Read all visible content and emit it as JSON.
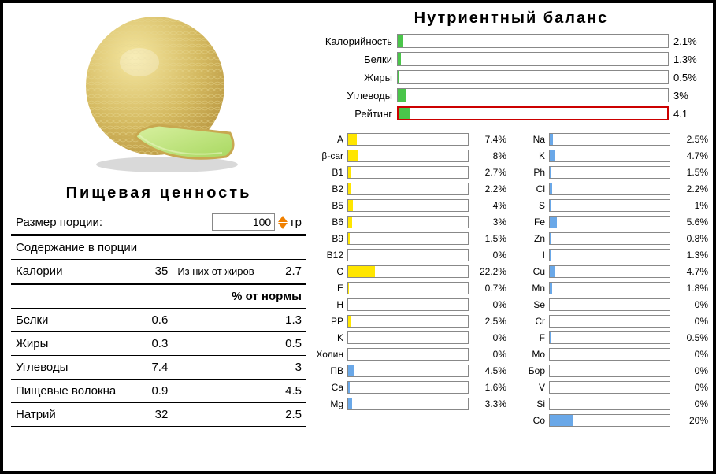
{
  "nutritionTitle": "Пищевая ценность",
  "portion": {
    "label": "Размер порции:",
    "value": "100",
    "unit": "гр"
  },
  "portionContentLabel": "Содержание в порции",
  "caloriesRow": {
    "label": "Калории",
    "value": "35",
    "fromFatLabel": "Из них от жиров",
    "fromFatValue": "2.7"
  },
  "normHeader": "% от нормы",
  "nutriRows": [
    {
      "label": "Белки",
      "value": "0.6",
      "pct": "1.3"
    },
    {
      "label": "Жиры",
      "value": "0.3",
      "pct": "0.5"
    },
    {
      "label": "Углеводы",
      "value": "7.4",
      "pct": "3"
    },
    {
      "label": "Пищевые волокна",
      "value": "0.9",
      "pct": "4.5"
    },
    {
      "label": "Натрий",
      "value": "32",
      "pct": "2.5"
    }
  ],
  "balanceTitle": "Нутриентный баланс",
  "topBars": [
    {
      "label": "Калорийность",
      "value": "2.1%",
      "pct": 2.1,
      "color": "#4ac54a"
    },
    {
      "label": "Белки",
      "value": "1.3%",
      "pct": 1.3,
      "color": "#4ac54a"
    },
    {
      "label": "Жиры",
      "value": "0.5%",
      "pct": 0.5,
      "color": "#4ac54a"
    },
    {
      "label": "Углеводы",
      "value": "3%",
      "pct": 3,
      "color": "#4ac54a"
    },
    {
      "label": "Рейтинг",
      "value": "4.1",
      "pct": 4.1,
      "color": "#4ac54a",
      "rating": true
    }
  ],
  "col1": [
    {
      "label": "A",
      "value": "7.4%",
      "pct": 7.4,
      "color": "#ffe600"
    },
    {
      "label": "β-car",
      "value": "8%",
      "pct": 8,
      "color": "#ffe600"
    },
    {
      "label": "B1",
      "value": "2.7%",
      "pct": 2.7,
      "color": "#ffe600"
    },
    {
      "label": "B2",
      "value": "2.2%",
      "pct": 2.2,
      "color": "#ffe600"
    },
    {
      "label": "B5",
      "value": "4%",
      "pct": 4,
      "color": "#ffe600"
    },
    {
      "label": "B6",
      "value": "3%",
      "pct": 3,
      "color": "#ffe600"
    },
    {
      "label": "B9",
      "value": "1.5%",
      "pct": 1.5,
      "color": "#ffe600"
    },
    {
      "label": "B12",
      "value": "0%",
      "pct": 0,
      "color": "#ffe600"
    },
    {
      "label": "C",
      "value": "22.2%",
      "pct": 22.2,
      "color": "#ffe600"
    },
    {
      "label": "E",
      "value": "0.7%",
      "pct": 0.7,
      "color": "#ffe600"
    },
    {
      "label": "H",
      "value": "0%",
      "pct": 0,
      "color": "#ffe600"
    },
    {
      "label": "PP",
      "value": "2.5%",
      "pct": 2.5,
      "color": "#ffe600"
    },
    {
      "label": "K",
      "value": "0%",
      "pct": 0,
      "color": "#ffe600"
    },
    {
      "label": "Холин",
      "value": "0%",
      "pct": 0,
      "color": "#ffe600"
    },
    {
      "label": "ПВ",
      "value": "4.5%",
      "pct": 4.5,
      "color": "#6aa8e8"
    },
    {
      "label": "Ca",
      "value": "1.6%",
      "pct": 1.6,
      "color": "#6aa8e8"
    },
    {
      "label": "Mg",
      "value": "3.3%",
      "pct": 3.3,
      "color": "#6aa8e8"
    }
  ],
  "col2": [
    {
      "label": "Na",
      "value": "2.5%",
      "pct": 2.5,
      "color": "#6aa8e8"
    },
    {
      "label": "K",
      "value": "4.7%",
      "pct": 4.7,
      "color": "#6aa8e8"
    },
    {
      "label": "Ph",
      "value": "1.5%",
      "pct": 1.5,
      "color": "#6aa8e8"
    },
    {
      "label": "Cl",
      "value": "2.2%",
      "pct": 2.2,
      "color": "#6aa8e8"
    },
    {
      "label": "S",
      "value": "1%",
      "pct": 1,
      "color": "#6aa8e8"
    },
    {
      "label": "Fe",
      "value": "5.6%",
      "pct": 5.6,
      "color": "#6aa8e8"
    },
    {
      "label": "Zn",
      "value": "0.8%",
      "pct": 0.8,
      "color": "#6aa8e8"
    },
    {
      "label": "I",
      "value": "1.3%",
      "pct": 1.3,
      "color": "#6aa8e8"
    },
    {
      "label": "Cu",
      "value": "4.7%",
      "pct": 4.7,
      "color": "#6aa8e8"
    },
    {
      "label": "Mn",
      "value": "1.8%",
      "pct": 1.8,
      "color": "#6aa8e8"
    },
    {
      "label": "Se",
      "value": "0%",
      "pct": 0,
      "color": "#6aa8e8"
    },
    {
      "label": "Cr",
      "value": "0%",
      "pct": 0,
      "color": "#6aa8e8"
    },
    {
      "label": "F",
      "value": "0.5%",
      "pct": 0.5,
      "color": "#6aa8e8"
    },
    {
      "label": "Mo",
      "value": "0%",
      "pct": 0,
      "color": "#6aa8e8"
    },
    {
      "label": "Бор",
      "value": "0%",
      "pct": 0,
      "color": "#6aa8e8"
    },
    {
      "label": "V",
      "value": "0%",
      "pct": 0,
      "color": "#6aa8e8"
    },
    {
      "label": "Si",
      "value": "0%",
      "pct": 0,
      "color": "#6aa8e8"
    },
    {
      "label": "Co",
      "value": "20%",
      "pct": 20,
      "color": "#6aa8e8"
    }
  ]
}
